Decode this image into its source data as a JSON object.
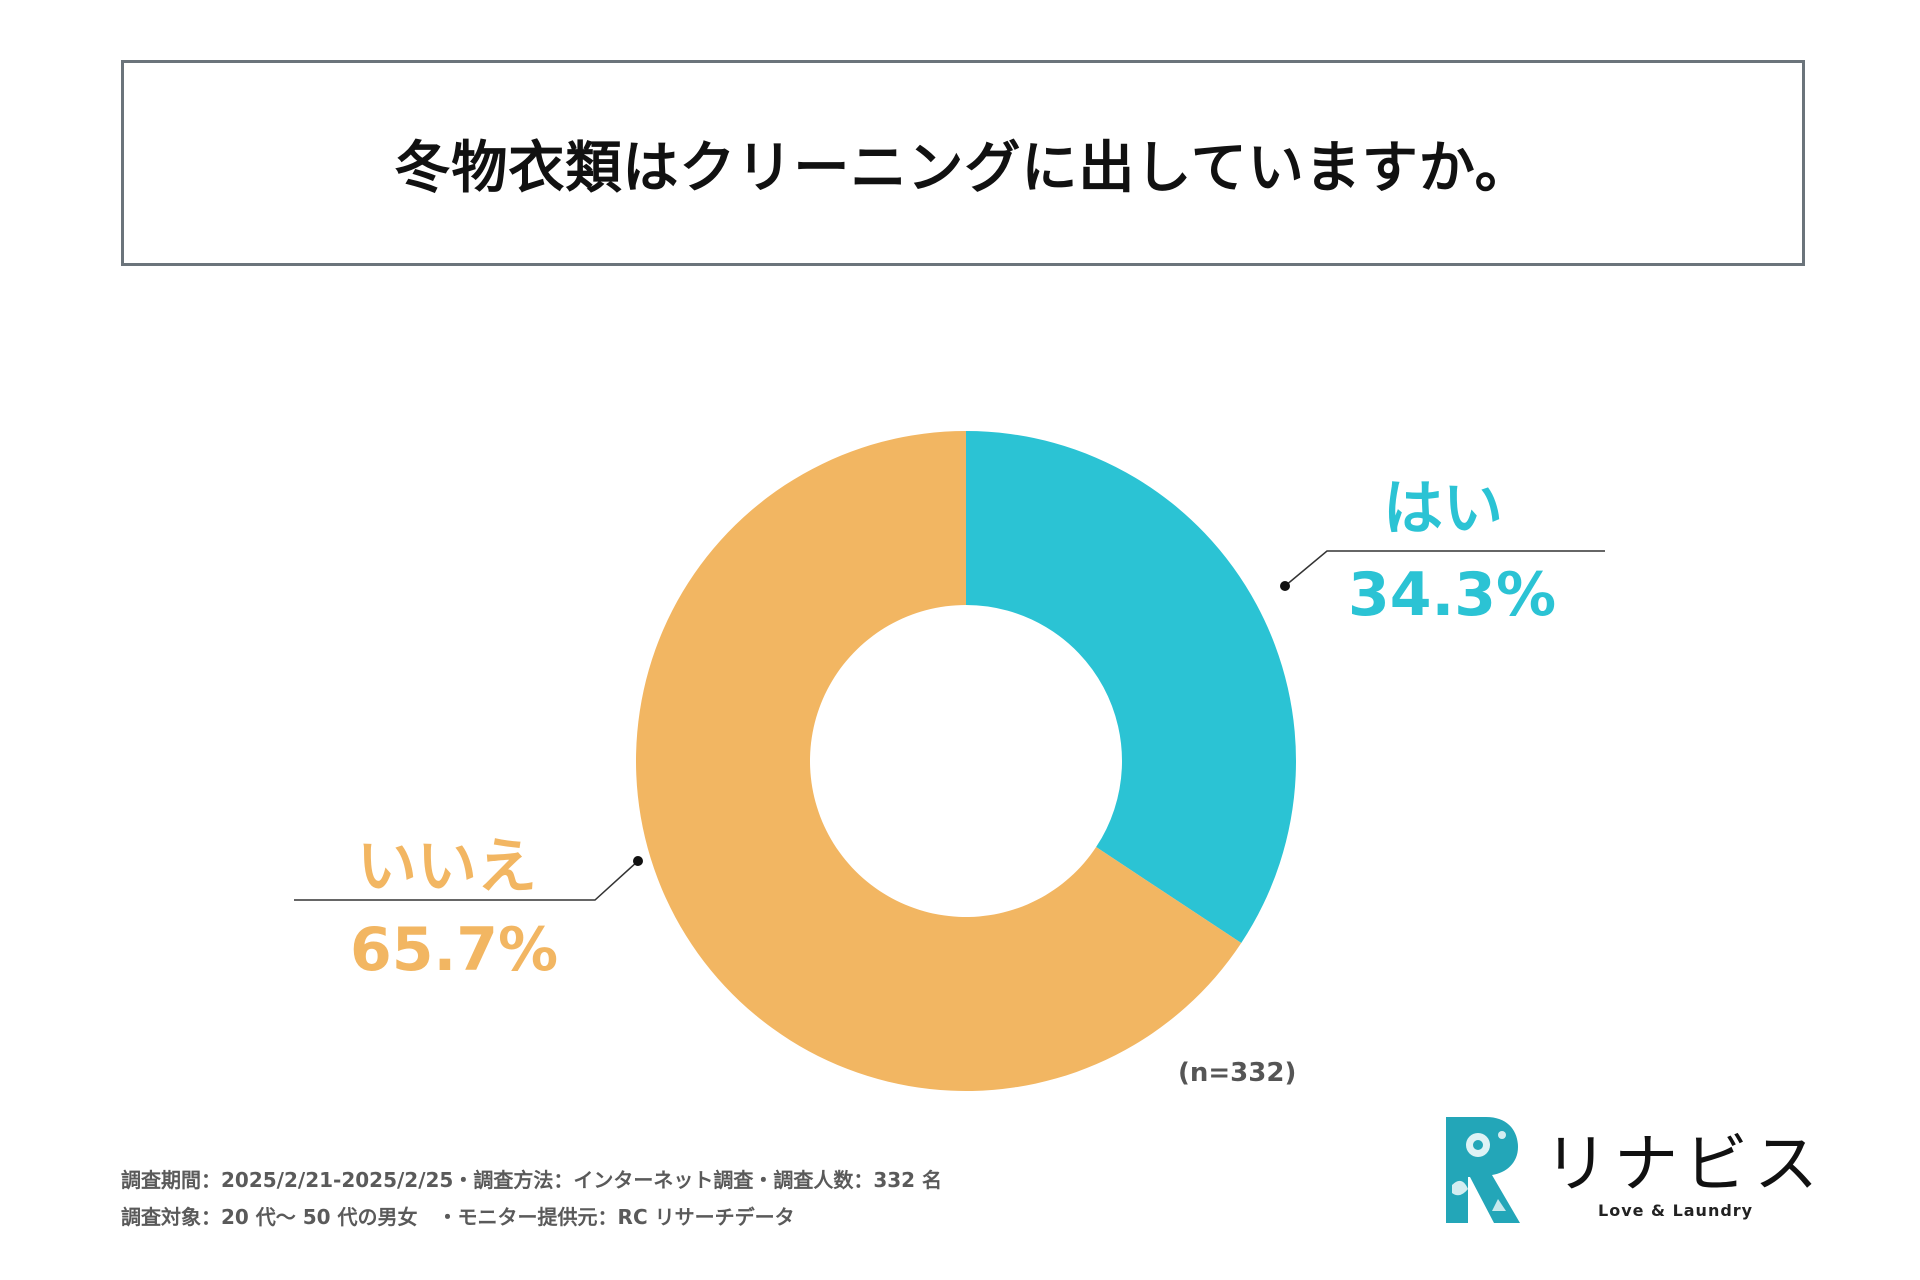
{
  "title": "冬物衣類はクリーニングに出していますか。",
  "sample_note": "(n=332)",
  "footer": {
    "line1": "調査期間：2025/2/21-2025/2/25・調査方法：インターネット調査・調査人数：332 名",
    "line2": "調査対象：20 代～ 50 代の男女　・モニター提供元：RC リサーチデータ"
  },
  "logo": {
    "name": "リナビス",
    "tagline": "Love & Laundry",
    "icon": "laundry-r-logo-icon"
  },
  "colors": {
    "yes": "#2bc3d4",
    "no": "#f2b662",
    "title_border": "#6b747b",
    "leader": "#333333"
  },
  "chart_data": {
    "type": "pie",
    "variant": "donut",
    "title": "冬物衣類はクリーニングに出していますか。",
    "slices": [
      {
        "label": "はい",
        "value": 34.3,
        "value_label": "34.3%"
      },
      {
        "label": "いいえ",
        "value": 65.7,
        "value_label": "65.7%"
      }
    ]
  }
}
